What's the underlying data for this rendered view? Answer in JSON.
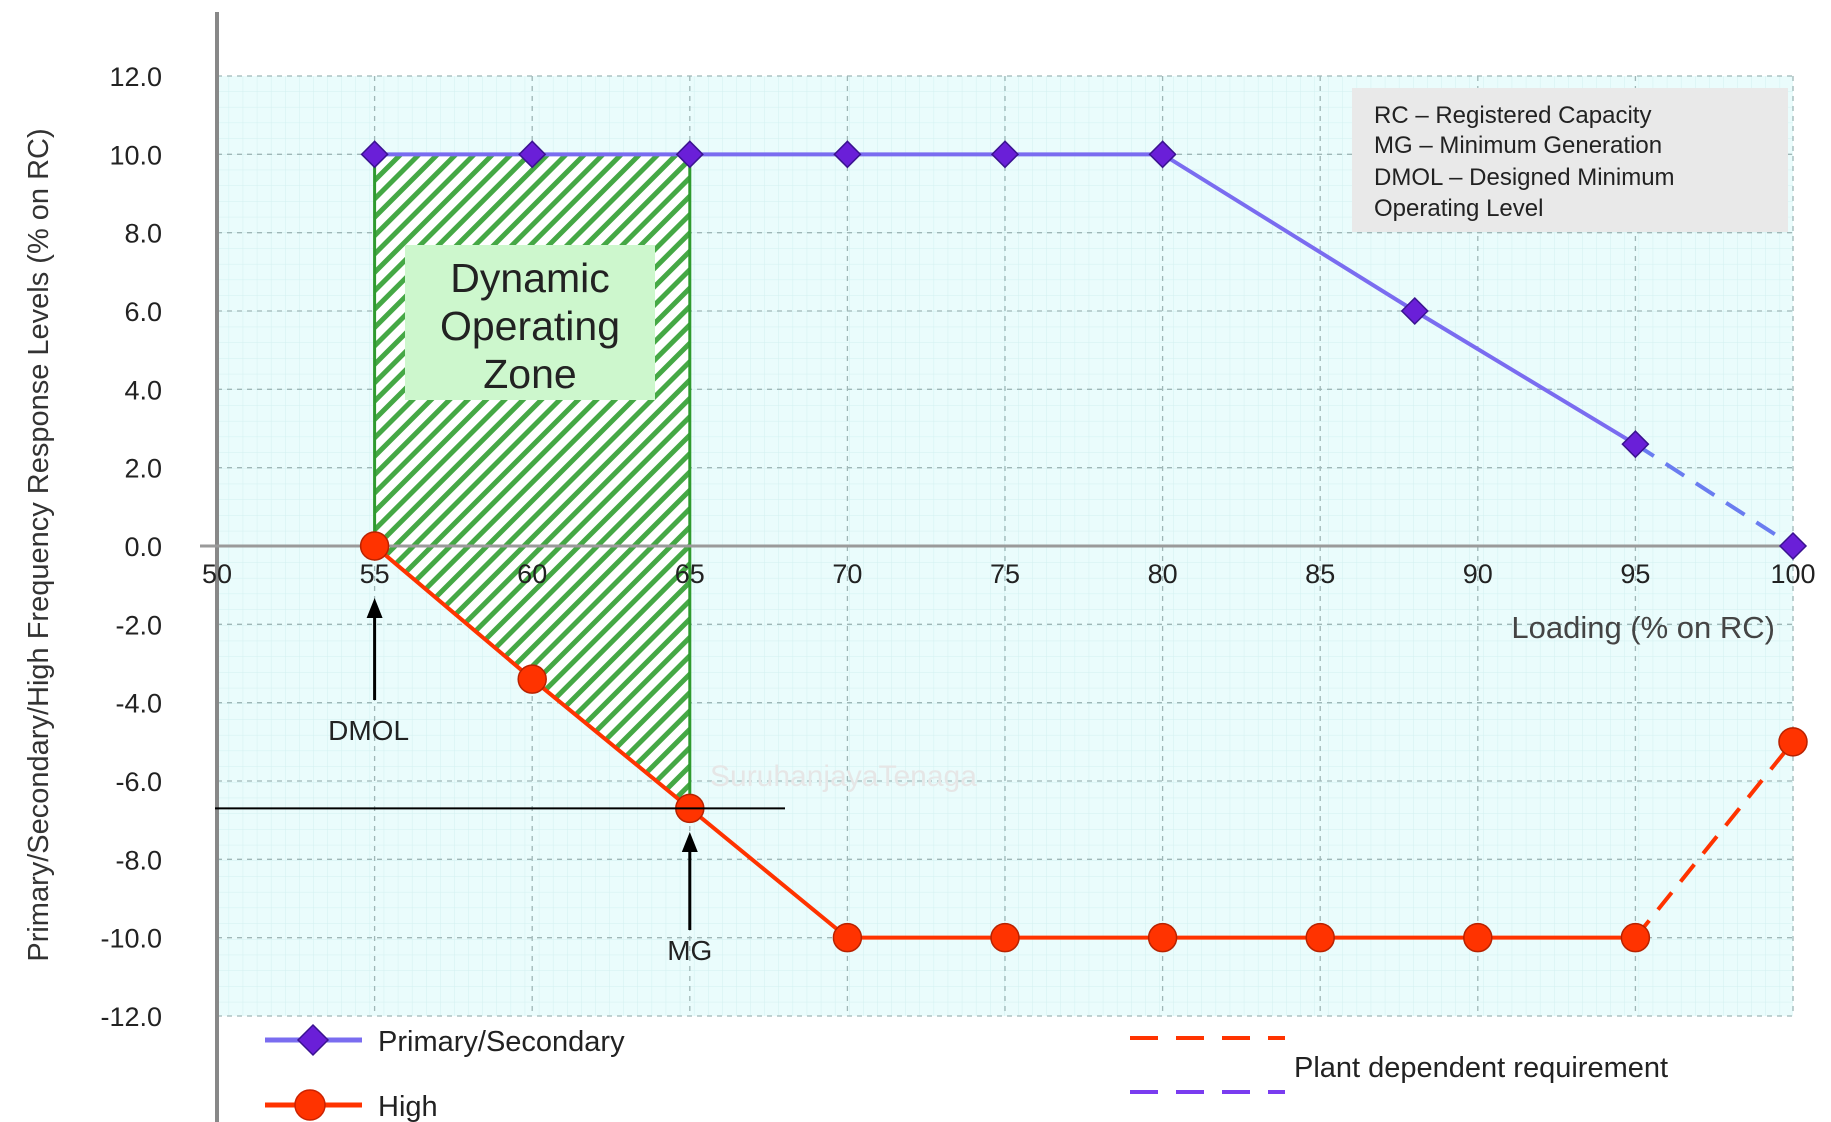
{
  "chart_data": {
    "type": "line",
    "xlabel": "Loading (% on RC)",
    "ylabel": "Primary/Secondary/High Frequency Response Levels (% on RC)",
    "xlim": [
      50,
      100
    ],
    "ylim": [
      -12,
      12
    ],
    "x_ticks": [
      "50",
      "55",
      "60",
      "65",
      "70",
      "75",
      "80",
      "85",
      "90",
      "95",
      "100"
    ],
    "y_ticks": [
      "12.0",
      "10.0",
      "8.0",
      "6.0",
      "4.0",
      "2.0",
      "0.0",
      "-2.0",
      "-4.0",
      "-6.0",
      "-8.0",
      "-10.0",
      "-12.0"
    ],
    "grid": true,
    "series": [
      {
        "name": "Primary/Secondary",
        "color": "#7a6cf0",
        "marker": "diamond",
        "points": [
          [
            55,
            10
          ],
          [
            60,
            10
          ],
          [
            65,
            10
          ],
          [
            70,
            10
          ],
          [
            75,
            10
          ],
          [
            80,
            10
          ],
          [
            88,
            6
          ],
          [
            95,
            2.6
          ],
          [
            100,
            0
          ]
        ],
        "dashed_from_x": 95
      },
      {
        "name": "High",
        "color": "#ff3300",
        "marker": "circle",
        "points": [
          [
            55,
            0
          ],
          [
            60,
            -3.4
          ],
          [
            65,
            -6.7
          ],
          [
            70,
            -10
          ],
          [
            75,
            -10
          ],
          [
            80,
            -10
          ],
          [
            85,
            -10
          ],
          [
            90,
            -10
          ],
          [
            95,
            -10
          ],
          [
            100,
            -5
          ]
        ],
        "dashed_from_x": 95
      }
    ],
    "zone": {
      "x_from": 55,
      "x_to": 65,
      "label_lines": [
        "Dynamic",
        "Operating",
        "Zone"
      ]
    },
    "annotations": {
      "dmol": {
        "label": "DMOL",
        "x": 55
      },
      "mg": {
        "label": "MG",
        "x": 65,
        "y": -6.7
      }
    },
    "info_box": [
      "RC – Registered Capacity",
      "MG – Minimum Generation",
      "DMOL – Designed Minimum",
      "Operating Level"
    ],
    "legend": {
      "series": [
        "Primary/Secondary",
        "High"
      ],
      "dashed_note": "Plant dependent requirement",
      "placement": "bottom"
    },
    "watermark": "SuruhanjayaTenaga"
  }
}
